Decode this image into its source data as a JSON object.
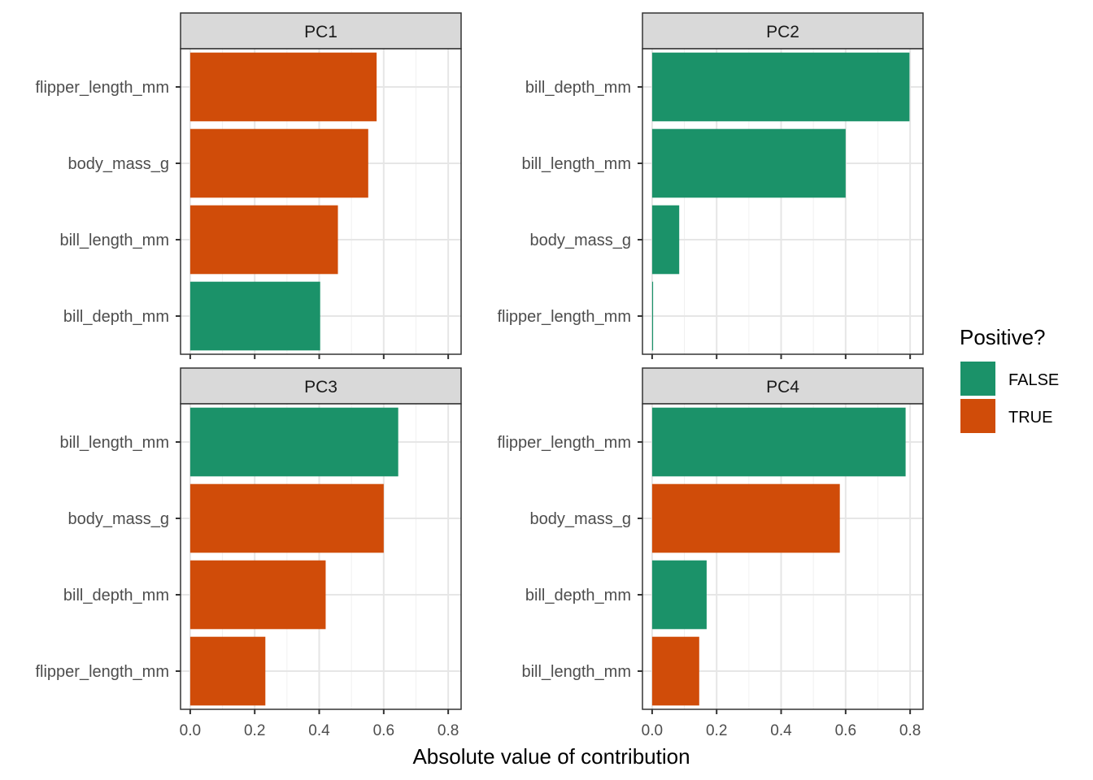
{
  "chart_data": {
    "type": "bar",
    "orientation": "horizontal",
    "xlabel": "Absolute value of contribution",
    "xlim": [
      -0.03,
      0.84
    ],
    "xticks": [
      0.0,
      0.2,
      0.4,
      0.6,
      0.8
    ],
    "xtick_labels": [
      "0.0",
      "0.2",
      "0.4",
      "0.6",
      "0.8"
    ],
    "grid": true,
    "colors": {
      "FALSE": "#1b9269",
      "TRUE": "#d04c09"
    },
    "legend": {
      "title": "Positive?",
      "position": "right",
      "entries": [
        {
          "key": "FALSE",
          "label": "FALSE"
        },
        {
          "key": "TRUE",
          "label": "TRUE"
        }
      ]
    },
    "panels": [
      {
        "title": "PC1",
        "bars": [
          {
            "category": "flipper_length_mm",
            "value": 0.578,
            "positive": "TRUE"
          },
          {
            "category": "body_mass_g",
            "value": 0.552,
            "positive": "TRUE"
          },
          {
            "category": "bill_length_mm",
            "value": 0.458,
            "positive": "TRUE"
          },
          {
            "category": "bill_depth_mm",
            "value": 0.403,
            "positive": "FALSE"
          }
        ]
      },
      {
        "title": "PC2",
        "bars": [
          {
            "category": "bill_depth_mm",
            "value": 0.798,
            "positive": "FALSE"
          },
          {
            "category": "bill_length_mm",
            "value": 0.6,
            "positive": "FALSE"
          },
          {
            "category": "body_mass_g",
            "value": 0.084,
            "positive": "FALSE"
          },
          {
            "category": "flipper_length_mm",
            "value": 0.003,
            "positive": "FALSE"
          }
        ]
      },
      {
        "title": "PC3",
        "bars": [
          {
            "category": "bill_length_mm",
            "value": 0.645,
            "positive": "FALSE"
          },
          {
            "category": "body_mass_g",
            "value": 0.6,
            "positive": "TRUE"
          },
          {
            "category": "bill_depth_mm",
            "value": 0.42,
            "positive": "TRUE"
          },
          {
            "category": "flipper_length_mm",
            "value": 0.233,
            "positive": "TRUE"
          }
        ]
      },
      {
        "title": "PC4",
        "bars": [
          {
            "category": "flipper_length_mm",
            "value": 0.786,
            "positive": "FALSE"
          },
          {
            "category": "body_mass_g",
            "value": 0.582,
            "positive": "TRUE"
          },
          {
            "category": "bill_depth_mm",
            "value": 0.169,
            "positive": "FALSE"
          },
          {
            "category": "bill_length_mm",
            "value": 0.146,
            "positive": "TRUE"
          }
        ]
      }
    ]
  }
}
